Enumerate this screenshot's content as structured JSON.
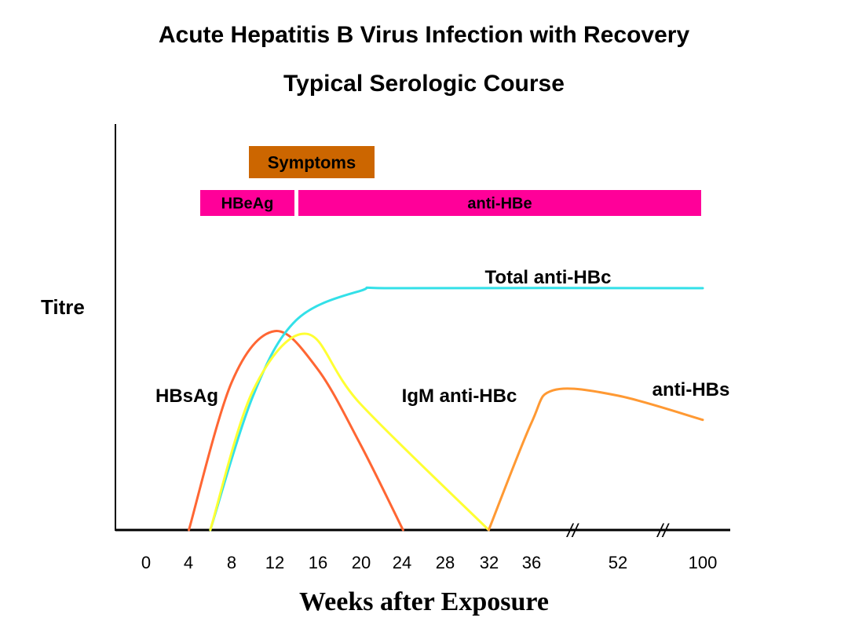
{
  "title": "Acute Hepatitis B Virus Infection with Recovery",
  "subtitle": "Typical Serologic Course",
  "chart_data": {
    "type": "line",
    "xlabel": "Weeks after Exposure",
    "ylabel": "Titre",
    "x_ticks": [
      "0",
      "4",
      "8",
      "12",
      "16",
      "20",
      "24",
      "28",
      "32",
      "36",
      "52",
      "100"
    ],
    "axis_breaks": [
      "//",
      "//"
    ],
    "bars": [
      {
        "label": "Symptoms",
        "start": "10",
        "end": "22",
        "color": "#cc6600"
      },
      {
        "label": "HBeAg",
        "start": "6",
        "end": "15",
        "color": "#ff0099"
      },
      {
        "label": "anti-HBe",
        "start": "15",
        "end": "100",
        "color": "#ff0099"
      }
    ],
    "series": [
      {
        "name": "HBsAg",
        "color": "#ff6633",
        "points": [
          [
            "4",
            0
          ],
          [
            "8",
            0.55
          ],
          [
            "12",
            0.74
          ],
          [
            "16",
            0.6
          ],
          [
            "20",
            0.32
          ],
          [
            "24",
            0
          ]
        ]
      },
      {
        "name": "Total anti-HBc",
        "color": "#33e0e8",
        "points": [
          [
            "6",
            0
          ],
          [
            "10",
            0.5
          ],
          [
            "14",
            0.78
          ],
          [
            "20",
            0.89
          ],
          [
            "24",
            0.9
          ],
          [
            "100",
            0.9
          ]
        ]
      },
      {
        "name": "IgM anti-HBc",
        "color": "#ffff33",
        "points": [
          [
            "6",
            0
          ],
          [
            "10",
            0.52
          ],
          [
            "15",
            0.73
          ],
          [
            "20",
            0.47
          ],
          [
            "32",
            0
          ]
        ]
      },
      {
        "name": "anti-HBs",
        "color": "#ff9933",
        "points": [
          [
            "32",
            0
          ],
          [
            "36",
            0.4
          ],
          [
            "40",
            0.52
          ],
          [
            "52",
            0.5
          ],
          [
            "100",
            0.41
          ]
        ]
      }
    ],
    "ylim": [
      0,
      1
    ],
    "grid": false
  },
  "colors": {
    "axis": "#000000",
    "background": "#ffffff"
  }
}
